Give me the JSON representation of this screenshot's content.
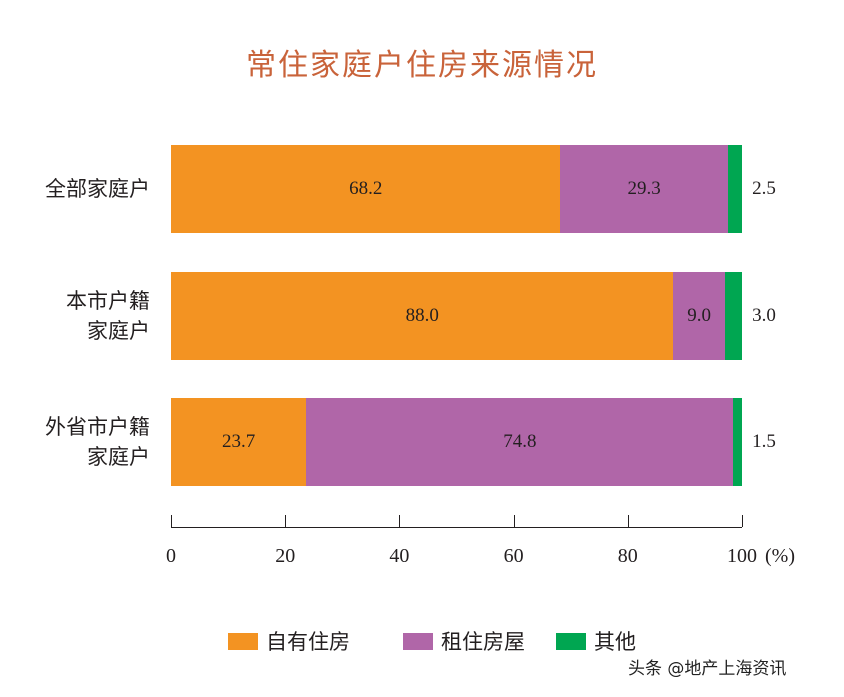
{
  "chart_data": {
    "type": "bar",
    "orientation": "horizontal",
    "stacked": true,
    "title": "常住家庭户住房来源情况",
    "categories": [
      [
        "全部家庭户"
      ],
      [
        "本市户籍",
        "家庭户"
      ],
      [
        "外省市户籍",
        "家庭户"
      ]
    ],
    "series": [
      {
        "name": "自有住房",
        "color": "#F39322",
        "values": [
          68.2,
          88.0,
          23.7
        ]
      },
      {
        "name": "租住房屋",
        "color": "#B066A8",
        "values": [
          29.3,
          9.0,
          74.8
        ]
      },
      {
        "name": "其他",
        "color": "#00A651",
        "values": [
          2.5,
          3.0,
          1.5
        ]
      }
    ],
    "value_labels": [
      [
        "68.2",
        "29.3",
        "2.5"
      ],
      [
        "88.0",
        "9.0",
        "3.0"
      ],
      [
        "23.7",
        "74.8",
        "1.5"
      ]
    ],
    "xlim": [
      0,
      100
    ],
    "xticks": [
      "0",
      "20",
      "40",
      "60",
      "80",
      "100"
    ],
    "xunit": "(%)",
    "legend": "bottom",
    "grid": false
  },
  "watermark": "头条 @地产上海资讯"
}
